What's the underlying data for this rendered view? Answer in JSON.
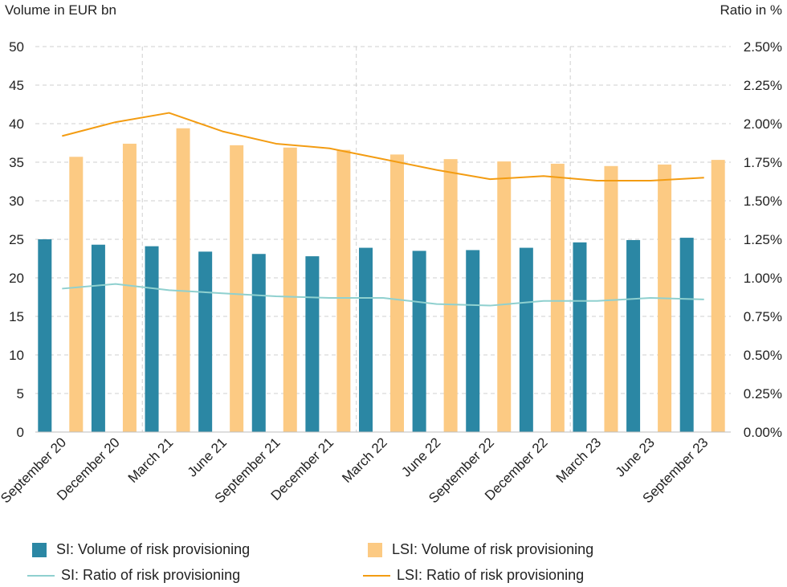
{
  "chart_data": {
    "type": "bar",
    "left_axis_label": "Volume in EUR bn",
    "right_axis_label": "Ratio in %",
    "left_ylim": [
      0,
      50
    ],
    "right_ylim": [
      0,
      2.5
    ],
    "left_ticks": [
      "0",
      "5",
      "10",
      "15",
      "20",
      "25",
      "30",
      "35",
      "40",
      "45",
      "50"
    ],
    "right_ticks": [
      "0.00%",
      "0.25%",
      "0.50%",
      "0.75%",
      "1.00%",
      "1.25%",
      "1.50%",
      "1.75%",
      "2.00%",
      "2.25%",
      "2.50%"
    ],
    "categories": [
      "September 20",
      "December 20",
      "March 21",
      "June 21",
      "September 21",
      "December 21",
      "March 22",
      "June 22",
      "September 22",
      "December 22",
      "March 23",
      "June 23",
      "September 23"
    ],
    "grid": true,
    "legend_position": "bottom",
    "bar_series": [
      {
        "name": "SI: Volume of risk provisioning",
        "color": "#2b87a4",
        "values": [
          25.0,
          24.3,
          24.1,
          23.4,
          23.1,
          22.8,
          23.9,
          23.5,
          23.6,
          23.9,
          24.6,
          24.9,
          25.2
        ]
      },
      {
        "name": "LSI: Volume of risk provisioning",
        "color": "#fcca83",
        "values": [
          35.7,
          37.4,
          39.4,
          37.2,
          36.9,
          36.6,
          36.0,
          35.4,
          35.1,
          34.8,
          34.5,
          34.7,
          35.3
        ]
      }
    ],
    "line_series": [
      {
        "name": "SI: Ratio of risk provisioning",
        "color": "#8fd0cf",
        "axis": "right",
        "values": [
          0.93,
          0.96,
          0.92,
          0.9,
          0.88,
          0.87,
          0.87,
          0.83,
          0.82,
          0.85,
          0.85,
          0.87,
          0.86
        ]
      },
      {
        "name": "LSI: Ratio of risk provisioning",
        "color": "#f39c12",
        "axis": "right",
        "values": [
          1.92,
          2.01,
          2.07,
          1.95,
          1.87,
          1.84,
          1.77,
          1.7,
          1.64,
          1.66,
          1.63,
          1.63,
          1.65
        ]
      }
    ]
  }
}
